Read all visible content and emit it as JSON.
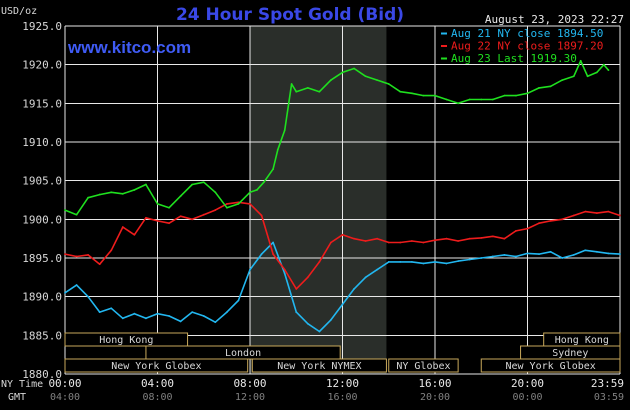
{
  "header": {
    "title": "24 Hour Spot Gold (Bid)",
    "site": "www.kitco.com",
    "unit": "USD/oz",
    "timestamp": "August 23, 2023 22:27"
  },
  "time_labels": {
    "ny_label": "NY Time",
    "gmt_label": "GMT"
  },
  "sessions": {
    "left_top": [
      {
        "name": "Hong Kong",
        "start": 0,
        "end": 5.3
      },
      {
        "name": "London",
        "start": 3.5,
        "end": 11.9
      },
      {
        "name": "New York Globex",
        "start": 0,
        "end": 7.9
      },
      {
        "name": "New York NYMEX",
        "start": 8.1,
        "end": 13.9
      },
      {
        "name": "NY Globex",
        "start": 14.0,
        "end": 17.0
      }
    ],
    "right_top": [
      {
        "name": "Hong Kong",
        "start": 20.7,
        "end": 24
      },
      {
        "name": "Sydney",
        "start": 19.7,
        "end": 24
      },
      {
        "name": "New York Globex",
        "start": 18.0,
        "end": 24
      }
    ]
  },
  "colors": {
    "background": "#000000",
    "grid": "#e8e8e8",
    "highlight": "#2a2e2a",
    "aug21": "#22b7f0",
    "aug22": "#ee1c1c",
    "aug23": "#1fe01f",
    "session_box": "#c9a95b",
    "session_text": "#d8d8d8",
    "axis_text": "#d8d8d8"
  },
  "chart_data": {
    "type": "line",
    "title": "24 Hour Spot Gold (Bid)",
    "ylabel": "USD/oz",
    "ylim": [
      1880.0,
      1925.0
    ],
    "xlim": [
      0,
      24
    ],
    "y_ticks": [
      "1880.0",
      "1885.0",
      "1890.0",
      "1895.0",
      "1900.0",
      "1905.0",
      "1910.0",
      "1915.0",
      "1920.0",
      "1925.0"
    ],
    "x_ticks_ny": [
      "00:00",
      "04:00",
      "08:00",
      "12:00",
      "16:00",
      "20:00",
      "23:59"
    ],
    "x_ticks_gmt": [
      "04:00",
      "08:00",
      "12:00",
      "16:00",
      "20:00",
      "00:00",
      "03:59"
    ],
    "highlight_hours": [
      8.0,
      13.9
    ],
    "grid": true,
    "legend_position": "top-right",
    "series": [
      {
        "name": "Aug 21 NY close 1894.50",
        "color": "#22b7f0",
        "x": [
          0,
          0.5,
          1,
          1.5,
          2,
          2.5,
          3,
          3.5,
          4,
          4.5,
          5,
          5.5,
          6,
          6.5,
          7,
          7.5,
          8,
          8.5,
          9,
          9.5,
          10,
          10.5,
          11,
          11.5,
          12,
          12.5,
          13,
          13.5,
          14,
          14.5,
          15,
          15.5,
          16,
          16.5,
          17,
          17.5,
          18,
          18.5,
          19,
          19.5,
          20,
          20.5,
          21,
          21.5,
          22,
          22.5,
          23,
          23.5,
          24
        ],
        "y": [
          1890.5,
          1891.5,
          1890.0,
          1888.0,
          1888.5,
          1887.2,
          1887.8,
          1887.2,
          1887.8,
          1887.5,
          1886.8,
          1888.0,
          1887.5,
          1886.7,
          1888.0,
          1889.5,
          1893.5,
          1895.5,
          1897.0,
          1893.0,
          1888.0,
          1886.5,
          1885.5,
          1887.0,
          1889.0,
          1891.0,
          1892.5,
          1893.5,
          1894.5,
          1894.5,
          1894.5,
          1894.3,
          1894.5,
          1894.3,
          1894.6,
          1894.8,
          1895.0,
          1895.2,
          1895.4,
          1895.2,
          1895.6,
          1895.5,
          1895.8,
          1895.0,
          1895.4,
          1896.0,
          1895.8,
          1895.6,
          1895.5
        ]
      },
      {
        "name": "Aug 22 NY close 1897.20",
        "color": "#ee1c1c",
        "x": [
          0,
          0.5,
          1,
          1.5,
          2,
          2.5,
          3,
          3.5,
          4,
          4.5,
          5,
          5.5,
          6,
          6.5,
          7,
          7.5,
          8,
          8.5,
          9,
          9.5,
          10,
          10.5,
          11,
          11.5,
          12,
          12.5,
          13,
          13.5,
          14,
          14.5,
          15,
          15.5,
          16,
          16.5,
          17,
          17.5,
          18,
          18.5,
          19,
          19.5,
          20,
          20.5,
          21,
          21.5,
          22,
          22.5,
          23,
          23.5,
          24
        ],
        "y": [
          1895.5,
          1895.2,
          1895.4,
          1894.2,
          1896.0,
          1899.0,
          1898.0,
          1900.2,
          1899.8,
          1899.5,
          1900.4,
          1900.0,
          1900.6,
          1901.2,
          1902.0,
          1902.2,
          1902.0,
          1900.5,
          1895.5,
          1893.5,
          1891.0,
          1892.5,
          1894.5,
          1897.0,
          1898.0,
          1897.5,
          1897.2,
          1897.5,
          1897.0,
          1897.0,
          1897.2,
          1897.0,
          1897.3,
          1897.5,
          1897.2,
          1897.5,
          1897.6,
          1897.8,
          1897.5,
          1898.5,
          1898.8,
          1899.5,
          1899.8,
          1900.0,
          1900.5,
          1901.0,
          1900.8,
          1901.0,
          1900.5
        ]
      },
      {
        "name": "Aug 23 Last 1919.30",
        "color": "#1fe01f",
        "x": [
          0,
          0.5,
          1,
          1.5,
          2,
          2.5,
          3,
          3.5,
          4,
          4.5,
          5,
          5.5,
          6,
          6.5,
          7,
          7.5,
          8,
          8.3,
          8.6,
          9,
          9.2,
          9.5,
          9.8,
          10,
          10.5,
          11,
          11.5,
          12,
          12.5,
          13,
          13.5,
          14,
          14.5,
          15,
          15.5,
          16,
          16.5,
          17,
          17.5,
          18,
          18.5,
          19,
          19.5,
          20,
          20.5,
          21,
          21.5,
          22,
          22.3,
          22.6,
          23,
          23.3,
          23.5
        ],
        "y": [
          1901.2,
          1900.6,
          1902.8,
          1903.2,
          1903.5,
          1903.3,
          1903.8,
          1904.5,
          1902.0,
          1901.5,
          1903.0,
          1904.5,
          1904.8,
          1903.5,
          1901.5,
          1902.0,
          1903.5,
          1903.8,
          1904.8,
          1906.5,
          1909.0,
          1911.5,
          1917.5,
          1916.5,
          1917.0,
          1916.5,
          1918.0,
          1919.0,
          1919.5,
          1918.5,
          1918.0,
          1917.5,
          1916.5,
          1916.3,
          1916.0,
          1916.0,
          1915.5,
          1915.0,
          1915.5,
          1915.5,
          1915.5,
          1916.0,
          1916.0,
          1916.3,
          1917.0,
          1917.2,
          1918.0,
          1918.5,
          1920.5,
          1918.5,
          1919.0,
          1920.0,
          1919.3
        ]
      }
    ]
  }
}
